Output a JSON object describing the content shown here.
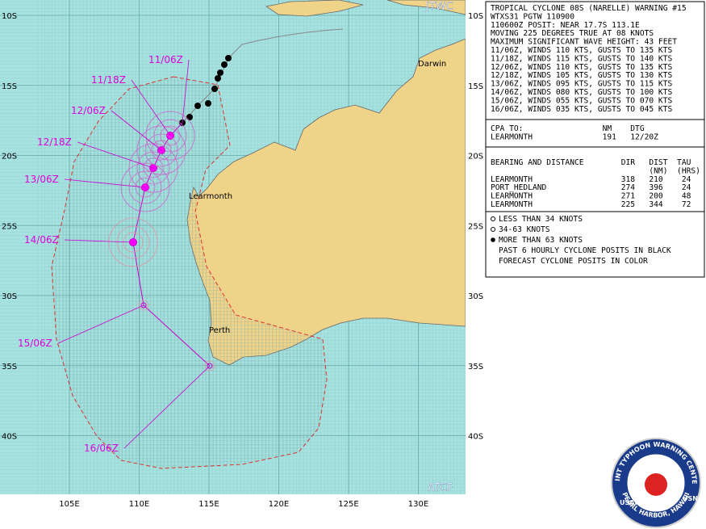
{
  "map": {
    "agency_top": "JTWC",
    "agency_bottom": "ATCF",
    "lat_labels": [
      "10S",
      "15S",
      "20S",
      "25S",
      "30S",
      "35S",
      "40S"
    ],
    "lon_labels": [
      "105E",
      "110E",
      "115E",
      "120E",
      "125E",
      "130E"
    ],
    "places": [
      "Darwin",
      "Learmonth",
      "Perth"
    ],
    "track_labels": [
      "11/06Z",
      "11/18Z",
      "12/06Z",
      "12/18Z",
      "13/06Z",
      "14/06Z",
      "15/06Z",
      "16/06Z"
    ]
  },
  "panel": {
    "warning_lines": [
      "TROPICAL CYCLONE 08S (NARELLE) WARNING #15",
      "WTXS31 PGTW 110900",
      "110600Z POSIT: NEAR 17.7S 113.1E",
      "MOVING 225 DEGREES TRUE AT 08 KNOTS",
      "MAXIMUM SIGNIFICANT WAVE HEIGHT: 43 FEET",
      "11/06Z, WINDS 110 KTS, GUSTS TO 135 KTS",
      "11/18Z, WINDS 115 KTS, GUSTS TO 140 KTS",
      "12/06Z, WINDS 110 KTS, GUSTS TO 135 KTS",
      "12/18Z, WINDS 105 KTS, GUSTS TO 130 KTS",
      "13/06Z, WINDS 095 KTS, GUSTS TO 115 KTS",
      "14/06Z, WINDS 080 KTS, GUSTS TO 100 KTS",
      "15/06Z, WINDS 055 KTS, GUSTS TO 070 KTS",
      "16/06Z, WINDS 035 KTS, GUSTS TO 045 KTS"
    ],
    "cpa_lines": [
      "CPA TO:                 NM    DTG",
      "LEARMONTH               191   12/20Z"
    ],
    "bearing_lines": [
      "BEARING AND DISTANCE        DIR   DIST  TAU",
      "                                  (NM)  (HRS)",
      "LEARMONTH                   318   210    24",
      "PORT_HEDLAND                274   396    24",
      "LEARMONTH                   271   200    48",
      "LEARMONTH                   225   344    72"
    ],
    "legend_lines": [
      "LESS THAN 34 KNOTS",
      "34-63 KNOTS",
      "MORE THAN 63 KNOTS",
      "PAST 6 HOURLY CYCLONE POSITS IN BLACK",
      "FORECAST CYCLONE POSITS IN COLOR"
    ]
  },
  "logo": {
    "ring_top": "JOINT TYPHOON WARNING CENTER",
    "ring_bottom": "PEARL HARBOR, HAWAII",
    "left": "USAF",
    "right": "USN"
  }
}
